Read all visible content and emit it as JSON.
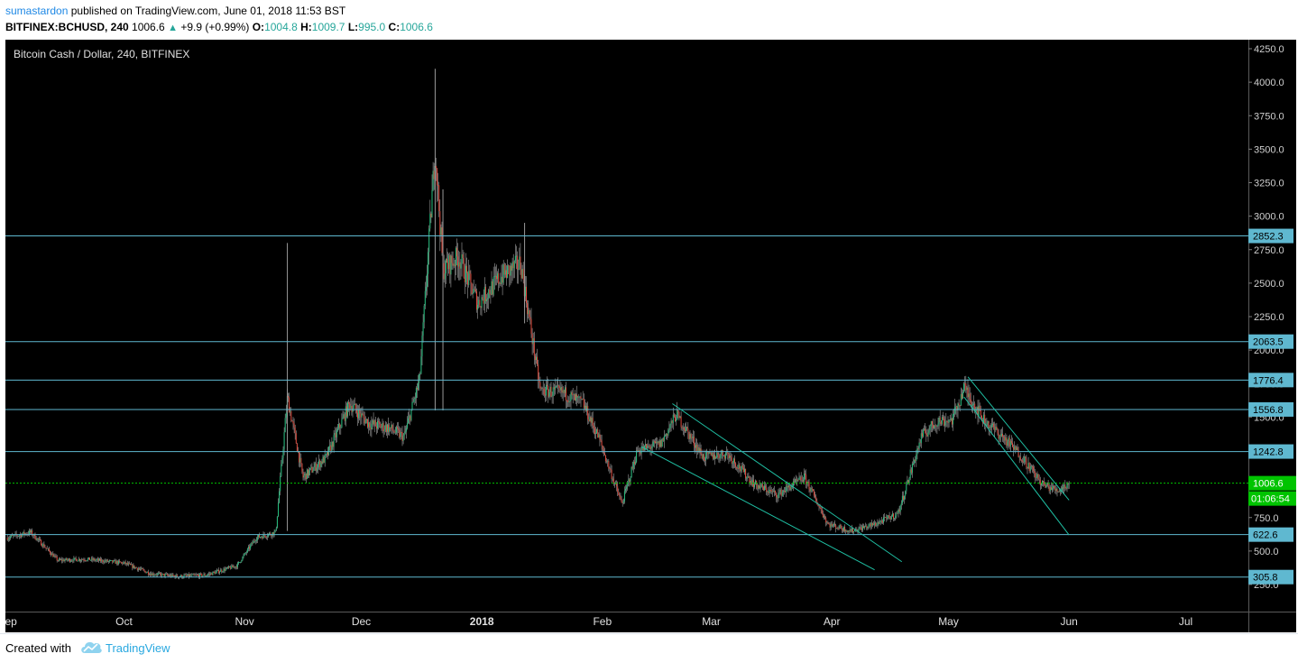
{
  "header": {
    "author": "sumastardon",
    "published": "published on TradingView.com, June 01, 2018 11:53 BST",
    "symbol": "BITFINEX:BCHUSD, 240",
    "last": "1006.6",
    "change": "+9.9 (+0.99%)",
    "o_label": "O:",
    "o": "1004.8",
    "h_label": "H:",
    "h": "1009.7",
    "l_label": "L:",
    "l": "995.0",
    "c_label": "C:",
    "c": "1006.6"
  },
  "footer": {
    "created": "Created with",
    "brand": "TradingView"
  },
  "colors": {
    "up": "#26c281",
    "down": "#e24a3c",
    "hline": "#5fb8d0",
    "price": "#00c400",
    "trend": "#1fbfa3",
    "bg": "#000000"
  },
  "chart_data": {
    "type": "candlestick",
    "title": "Bitcoin Cash / Dollar, 240, BITFINEX",
    "ylim": [
      0,
      4350
    ],
    "y_ticks": [
      250,
      500,
      750,
      1000,
      1250,
      1500,
      1750,
      2000,
      2250,
      2500,
      2750,
      3000,
      3250,
      3500,
      3750,
      4000,
      4250
    ],
    "y_tick_labels": [
      "250.0",
      "500.0",
      "750.0",
      "1000.0",
      "1250.0",
      "1500.0",
      "1750.0",
      "2000.0",
      "2250.0",
      "2500.0",
      "2750.0",
      "3000.0",
      "3250.0",
      "3500.0",
      "3750.0",
      "4000.0",
      "4250.0"
    ],
    "x_months": [
      "Sep",
      "Oct",
      "Nov",
      "Dec",
      "2018",
      "Feb",
      "Mar",
      "Apr",
      "May",
      "Jun",
      "Jul"
    ],
    "x_month_starts": [
      "2017-09-01",
      "2017-10-01",
      "2017-11-01",
      "2017-12-01",
      "2018-01-01",
      "2018-02-01",
      "2018-03-01",
      "2018-04-01",
      "2018-05-01",
      "2018-06-01",
      "2018-07-01"
    ],
    "horizontal_levels": [
      {
        "value": 2852.3,
        "label": "2852.3"
      },
      {
        "value": 2063.5,
        "label": "2063.5"
      },
      {
        "value": 1776.4,
        "label": "1776.4"
      },
      {
        "value": 1556.8,
        "label": "1556.8"
      },
      {
        "value": 1242.8,
        "label": "1242.8"
      },
      {
        "value": 622.6,
        "label": "622.6"
      },
      {
        "value": 305.8,
        "label": "305.8"
      }
    ],
    "last_price": {
      "value": 1006.6,
      "label": "1006.6",
      "countdown": "01:06:54"
    },
    "price_path": [
      [
        "2017-09-01",
        600
      ],
      [
        "2017-09-07",
        640
      ],
      [
        "2017-09-14",
        430
      ],
      [
        "2017-09-21",
        440
      ],
      [
        "2017-10-01",
        410
      ],
      [
        "2017-10-08",
        330
      ],
      [
        "2017-10-15",
        310
      ],
      [
        "2017-10-22",
        320
      ],
      [
        "2017-10-30",
        390
      ],
      [
        "2017-11-04",
        600
      ],
      [
        "2017-11-09",
        640
      ],
      [
        "2017-11-12",
        1650
      ],
      [
        "2017-11-16",
        1050
      ],
      [
        "2017-11-22",
        1200
      ],
      [
        "2017-11-28",
        1600
      ],
      [
        "2017-12-03",
        1450
      ],
      [
        "2017-12-08",
        1420
      ],
      [
        "2017-12-12",
        1350
      ],
      [
        "2017-12-16",
        1780
      ],
      [
        "2017-12-20",
        3500
      ],
      [
        "2017-12-22",
        2600
      ],
      [
        "2017-12-26",
        2700
      ],
      [
        "2017-12-31",
        2350
      ],
      [
        "2018-01-06",
        2550
      ],
      [
        "2018-01-11",
        2650
      ],
      [
        "2018-01-16",
        1700
      ],
      [
        "2018-01-22",
        1680
      ],
      [
        "2018-01-27",
        1600
      ],
      [
        "2018-01-31",
        1350
      ],
      [
        "2018-02-06",
        850
      ],
      [
        "2018-02-10",
        1250
      ],
      [
        "2018-02-16",
        1300
      ],
      [
        "2018-02-20",
        1520
      ],
      [
        "2018-02-27",
        1200
      ],
      [
        "2018-03-05",
        1230
      ],
      [
        "2018-03-12",
        1000
      ],
      [
        "2018-03-18",
        920
      ],
      [
        "2018-03-25",
        1050
      ],
      [
        "2018-03-31",
        700
      ],
      [
        "2018-04-06",
        650
      ],
      [
        "2018-04-12",
        700
      ],
      [
        "2018-04-18",
        780
      ],
      [
        "2018-04-24",
        1350
      ],
      [
        "2018-04-28",
        1470
      ],
      [
        "2018-05-02",
        1480
      ],
      [
        "2018-05-05",
        1720
      ],
      [
        "2018-05-10",
        1480
      ],
      [
        "2018-05-15",
        1350
      ],
      [
        "2018-05-20",
        1200
      ],
      [
        "2018-05-25",
        1000
      ],
      [
        "2018-05-29",
        950
      ],
      [
        "2018-06-01",
        1006.6
      ]
    ],
    "trend_channels": [
      {
        "from": [
          "2018-02-19",
          1600
        ],
        "to": [
          "2018-04-19",
          420
        ]
      },
      {
        "from": [
          "2018-02-11",
          1280
        ],
        "to": [
          "2018-04-12",
          360
        ]
      },
      {
        "from": [
          "2018-05-06",
          1800
        ],
        "to": [
          "2018-06-01",
          880
        ]
      },
      {
        "from": [
          "2018-05-05",
          1650
        ],
        "to": [
          "2018-06-01",
          620
        ]
      }
    ]
  }
}
